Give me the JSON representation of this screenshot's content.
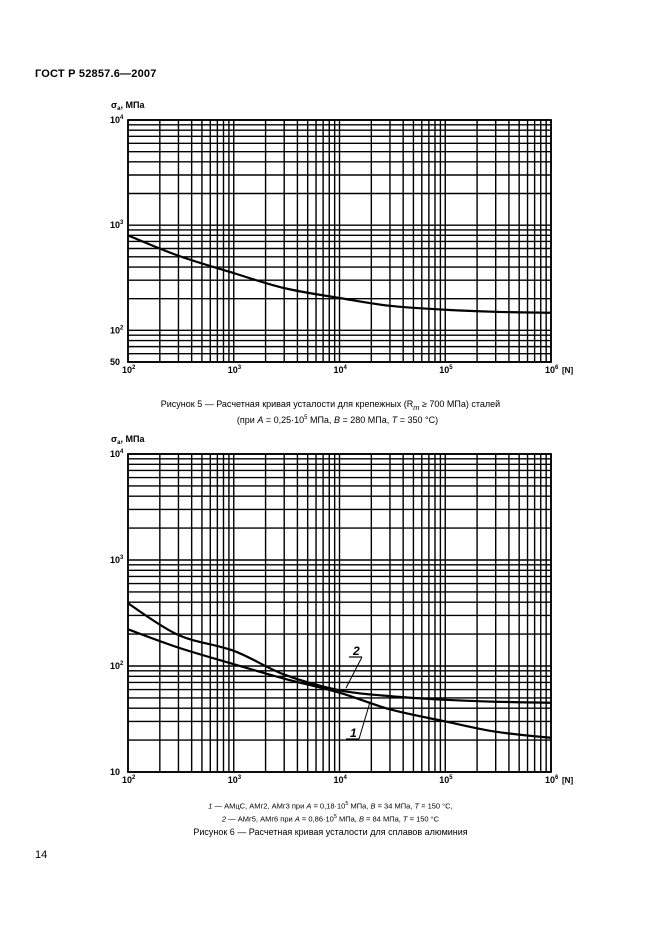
{
  "header": "ГОСТ Р 52857.6—2007",
  "page_number": "14",
  "chart_data": [
    {
      "type": "line",
      "title": "Рисунок 5 — Расчетная кривая усталости для крепежных (Rm ≥ 700 МПа) сталей",
      "ylabel": {
        "symbol": "σ",
        "sub": "a",
        "unit": ", МПа"
      },
      "xlabel": "[N]",
      "xscale": "log",
      "yscale": "log",
      "xlim": [
        100,
        1000000
      ],
      "ylim": [
        50,
        10000
      ],
      "grid": true,
      "xticks": [
        {
          "b": "10",
          "e": "2"
        },
        {
          "b": "10",
          "e": "3"
        },
        {
          "b": "10",
          "e": "4"
        },
        {
          "b": "10",
          "e": "5"
        },
        {
          "b": "10",
          "e": "6"
        }
      ],
      "yticks": [
        {
          "v": 50,
          "b": "50",
          "e": ""
        },
        {
          "v": 100,
          "b": "10",
          "e": "2"
        },
        {
          "v": 1000,
          "b": "10",
          "e": "3"
        },
        {
          "v": 10000,
          "b": "10",
          "e": "4"
        }
      ],
      "series": [
        {
          "name": "curve",
          "label": "",
          "x": [
            100,
            300,
            1000,
            3000,
            10000,
            30000,
            100000,
            300000,
            1000000
          ],
          "y": [
            800,
            512,
            350,
            252,
            203,
            171,
            157,
            150,
            147
          ]
        }
      ],
      "caption_lines": [
        "Рисунок 5  —  Расчетная кривая усталости для крепежных (R",
        "m",
        " ≥ 700 МПа) сталей",
        "(при ",
        "A",
        " = 0,25·10",
        "5",
        " МПа, ",
        "B",
        " = 280 МПа, ",
        "T",
        " = 350 °C)"
      ]
    },
    {
      "type": "line",
      "title": "Рисунок 6 — Расчетная кривая усталости для сплавов алюминия",
      "ylabel": {
        "symbol": "σ",
        "sub": "a",
        "unit": ", МПа"
      },
      "xlabel": "[N]",
      "xscale": "log",
      "yscale": "log",
      "xlim": [
        100,
        1000000
      ],
      "ylim": [
        10,
        10000
      ],
      "grid": true,
      "xticks": [
        {
          "b": "10",
          "e": "2"
        },
        {
          "b": "10",
          "e": "3"
        },
        {
          "b": "10",
          "e": "4"
        },
        {
          "b": "10",
          "e": "5"
        },
        {
          "b": "10",
          "e": "6"
        }
      ],
      "yticks": [
        {
          "v": 10,
          "b": "10",
          "e": ""
        },
        {
          "v": 100,
          "b": "10",
          "e": "2"
        },
        {
          "v": 1000,
          "b": "10",
          "e": "3"
        },
        {
          "v": 10000,
          "b": "10",
          "e": "4"
        }
      ],
      "series": [
        {
          "name": "1",
          "label": "1",
          "x": [
            100,
            300,
            1000,
            3000,
            10000,
            30000,
            100000,
            300000,
            1000000
          ],
          "y": [
            222,
            149,
            104,
            76,
            56,
            39,
            30,
            24,
            21
          ]
        },
        {
          "name": "2",
          "label": "2",
          "x": [
            100,
            300,
            1000,
            3000,
            10000,
            30000,
            100000,
            300000,
            1000000
          ],
          "y": [
            390,
            196,
            139,
            83,
            59,
            52,
            48,
            46,
            45
          ]
        }
      ],
      "legend": [
        {
          "num": "1",
          "text": " — АМцС, АМг2, АМг3 при ",
          "a": "A",
          "t1": " = 0,18·10",
          "exp": "5",
          "t2": " МПа, ",
          "b": "B",
          "t3": " = 34 МПа, ",
          "t": "T",
          "t4": " = 150 °C,"
        },
        {
          "num": "2",
          "text": " — АМг5, АМг6 при ",
          "a": "A",
          "t1": " = 0,86·10",
          "exp": "5",
          "t2": " МПа, ",
          "b": "B",
          "t3": " = 84 МПа, ",
          "t": "T",
          "t4": " = 150 °C"
        }
      ],
      "caption": "Рисунок 6  —  Расчетная кривая усталости для сплавов алюминия"
    }
  ]
}
